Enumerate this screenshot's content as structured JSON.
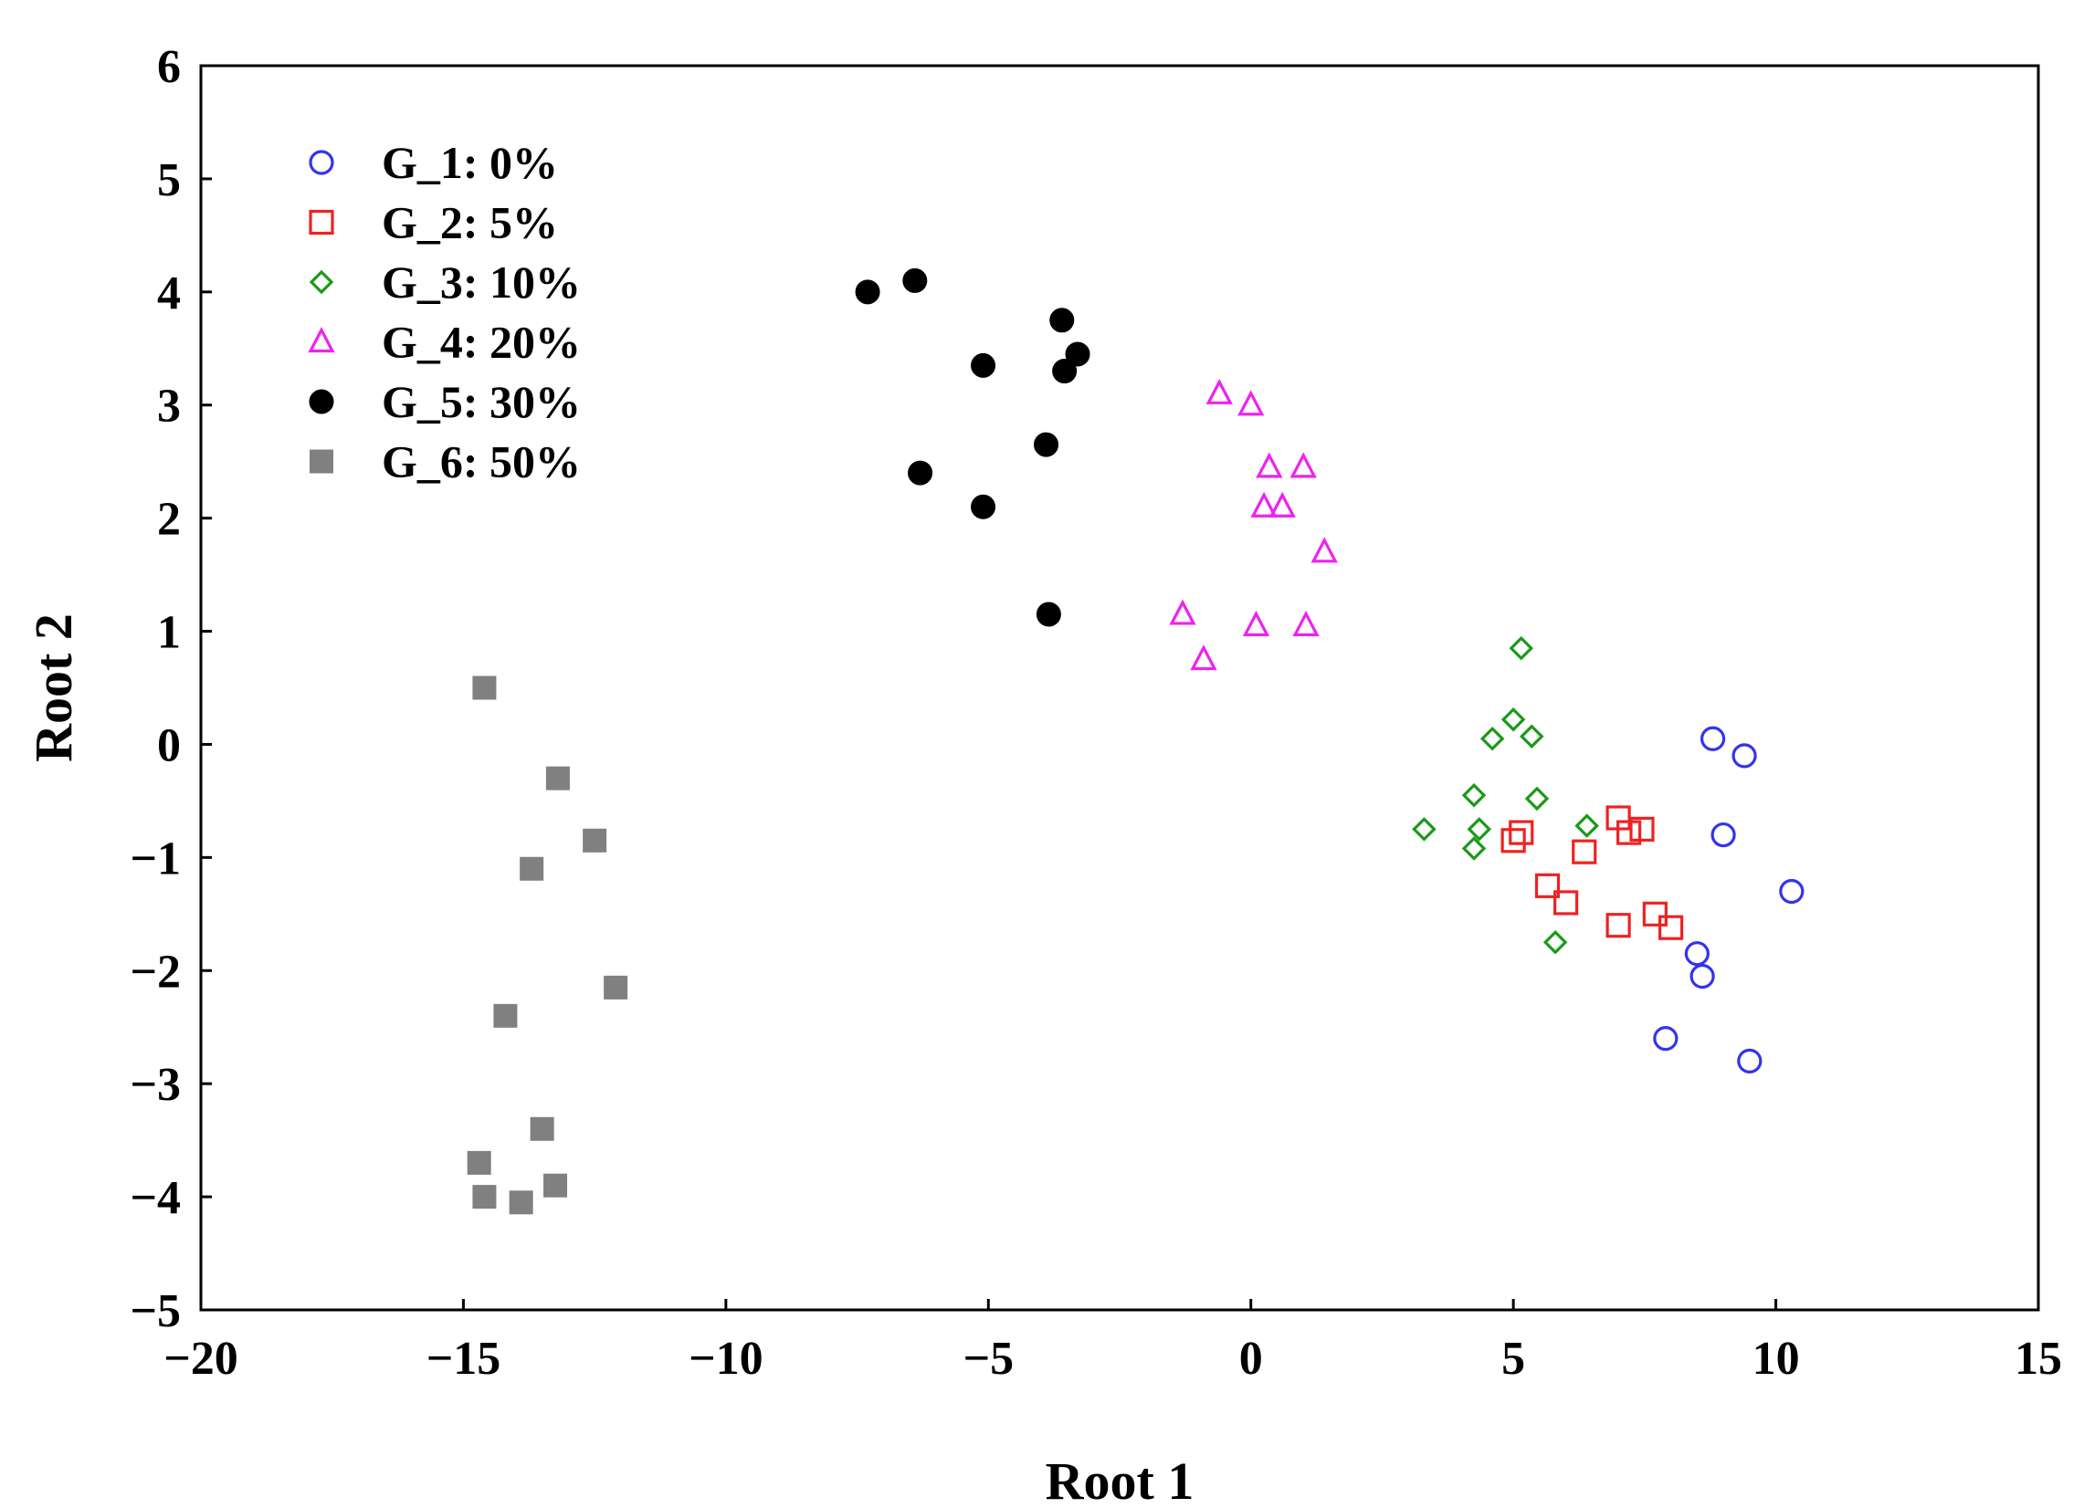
{
  "chart_data": {
    "type": "scatter",
    "title": "",
    "xlabel": "Root 1",
    "ylabel": "Root 2",
    "xlim": [
      -20,
      15
    ],
    "ylim": [
      -5,
      6
    ],
    "xticks": [
      -20,
      -15,
      -10,
      -5,
      0,
      5,
      10,
      15
    ],
    "yticks": [
      -5,
      -4,
      -3,
      -2,
      -1,
      0,
      1,
      2,
      3,
      4,
      5,
      6
    ],
    "xtick_labels": [
      "−20",
      "−15",
      "−10",
      "−5",
      "0",
      "5",
      "10",
      "15"
    ],
    "ytick_labels": [
      "−5",
      "−4",
      "−3",
      "−2",
      "−1",
      "0",
      "1",
      "2",
      "3",
      "4",
      "5",
      "6"
    ],
    "grid": false,
    "legend_position": "top-left",
    "series": [
      {
        "name": "G_1: 0%",
        "marker": "circle-open",
        "color": "#3333ee",
        "points": [
          [
            8.8,
            0.05
          ],
          [
            9.4,
            -0.1
          ],
          [
            9.0,
            -0.8
          ],
          [
            10.3,
            -1.3
          ],
          [
            8.5,
            -1.85
          ],
          [
            8.6,
            -2.05
          ],
          [
            7.9,
            -2.6
          ],
          [
            9.5,
            -2.8
          ]
        ]
      },
      {
        "name": "G_2: 5%",
        "marker": "square-open",
        "color": "#ee2222",
        "points": [
          [
            7.0,
            -0.65
          ],
          [
            7.2,
            -0.78
          ],
          [
            7.45,
            -0.75
          ],
          [
            5.0,
            -0.85
          ],
          [
            5.15,
            -0.78
          ],
          [
            6.35,
            -0.95
          ],
          [
            5.65,
            -1.25
          ],
          [
            6.0,
            -1.4
          ],
          [
            7.0,
            -1.6
          ],
          [
            7.7,
            -1.5
          ],
          [
            8.0,
            -1.62
          ]
        ]
      },
      {
        "name": "G_3: 10%",
        "marker": "diamond-open",
        "color": "#1a9a1a",
        "points": [
          [
            5.15,
            0.85
          ],
          [
            5.0,
            0.22
          ],
          [
            4.6,
            0.05
          ],
          [
            5.35,
            0.07
          ],
          [
            4.25,
            -0.45
          ],
          [
            5.45,
            -0.48
          ],
          [
            3.3,
            -0.75
          ],
          [
            4.35,
            -0.75
          ],
          [
            4.25,
            -0.92
          ],
          [
            6.4,
            -0.72
          ],
          [
            5.8,
            -1.75
          ]
        ]
      },
      {
        "name": "G_4: 20%",
        "marker": "triangle-open",
        "color": "#ee22ee",
        "points": [
          [
            -0.6,
            3.1
          ],
          [
            0.0,
            3.0
          ],
          [
            0.35,
            2.45
          ],
          [
            1.0,
            2.45
          ],
          [
            0.25,
            2.1
          ],
          [
            0.6,
            2.1
          ],
          [
            1.4,
            1.7
          ],
          [
            -1.3,
            1.15
          ],
          [
            0.1,
            1.05
          ],
          [
            1.05,
            1.05
          ],
          [
            -0.9,
            0.75
          ]
        ]
      },
      {
        "name": "G_5: 30%",
        "marker": "circle-filled",
        "color": "#000000",
        "points": [
          [
            -7.3,
            4.0
          ],
          [
            -6.4,
            4.1
          ],
          [
            -3.6,
            3.75
          ],
          [
            -3.3,
            3.45
          ],
          [
            -3.55,
            3.3
          ],
          [
            -5.1,
            3.35
          ],
          [
            -3.9,
            2.65
          ],
          [
            -6.3,
            2.4
          ],
          [
            -5.1,
            2.1
          ],
          [
            -3.85,
            1.15
          ]
        ]
      },
      {
        "name": "G_6: 50%",
        "marker": "square-filled",
        "color": "#808080",
        "points": [
          [
            -14.6,
            0.5
          ],
          [
            -13.2,
            -0.3
          ],
          [
            -12.5,
            -0.85
          ],
          [
            -13.7,
            -1.1
          ],
          [
            -12.1,
            -2.15
          ],
          [
            -14.2,
            -2.4
          ],
          [
            -13.5,
            -3.4
          ],
          [
            -14.7,
            -3.7
          ],
          [
            -14.6,
            -4.0
          ],
          [
            -13.9,
            -4.05
          ],
          [
            -13.25,
            -3.9
          ]
        ]
      }
    ]
  }
}
